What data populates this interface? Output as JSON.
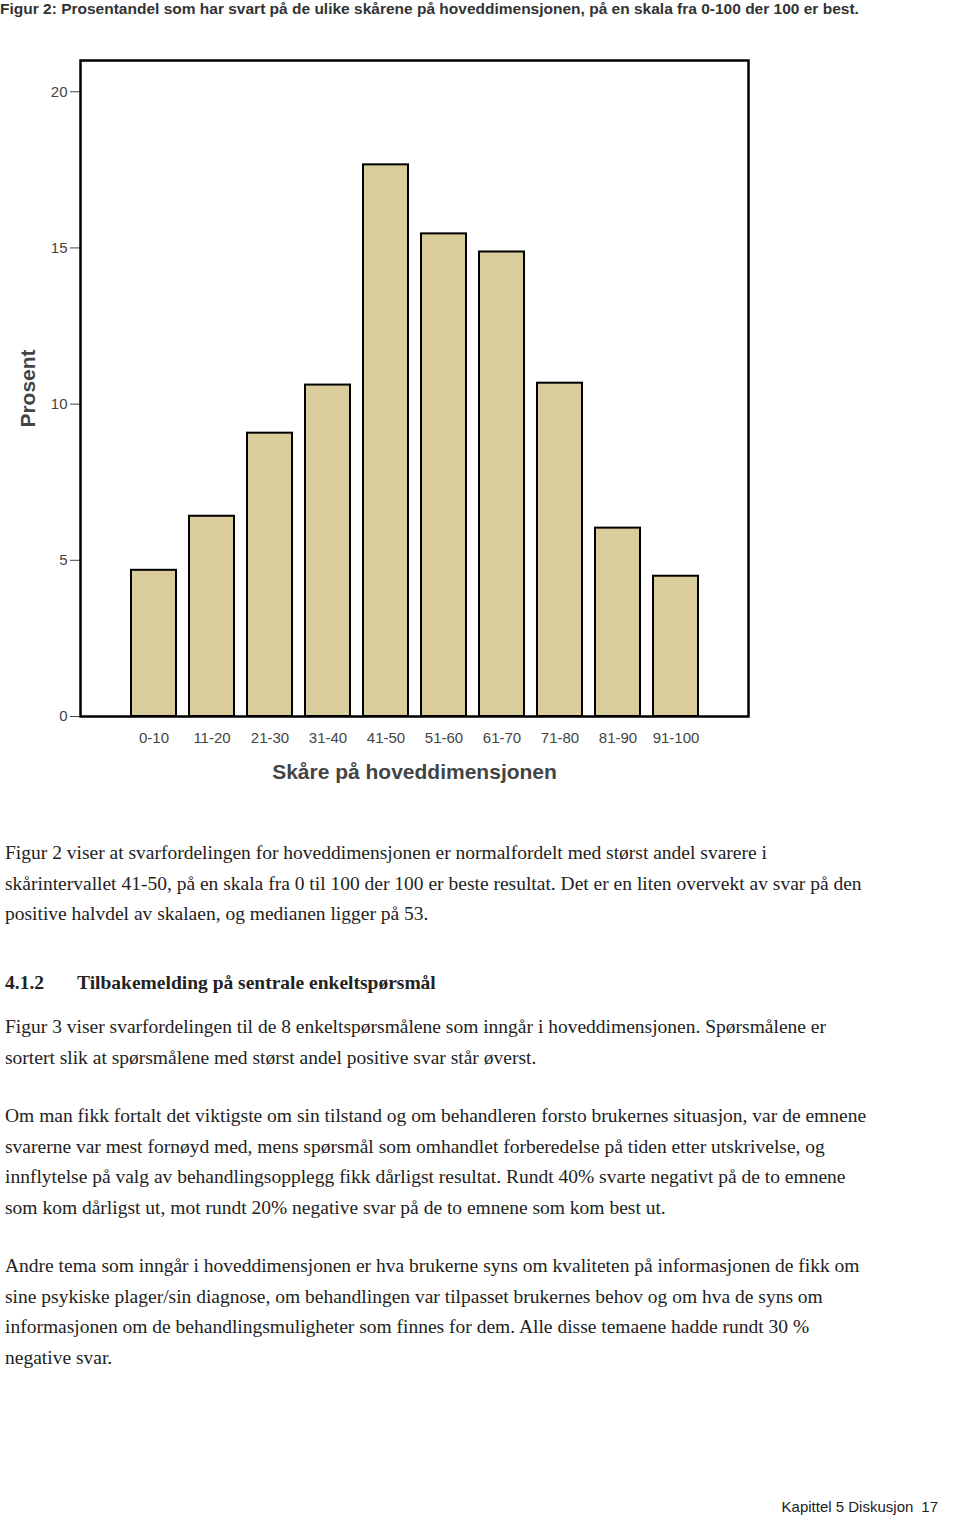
{
  "caption": "Figur 2: Prosentandel som har svart på de ulike skårene på hoveddimensjonen, på en skala fra 0-100 der 100 er best.",
  "chart_data": {
    "type": "bar",
    "categories": [
      "0-10",
      "11-20",
      "21-30",
      "31-40",
      "41-50",
      "51-60",
      "61-70",
      "71-80",
      "81-90",
      "91-100"
    ],
    "values": [
      4.68,
      6.41,
      9.07,
      10.61,
      17.66,
      15.45,
      14.87,
      10.67,
      6.03,
      4.49
    ],
    "color": "#d9cd9b",
    "xlabel": "Skåre på hoveddimensjonen",
    "ylabel": "Prosent",
    "ylim": [
      0,
      21
    ],
    "yticks": [
      0,
      5,
      10,
      15,
      20
    ],
    "grid": false
  },
  "body": [
    {
      "type": "paragraph",
      "text": "Figur 2 viser at svarfordelingen for hoveddimensjonen er normalfordelt med størst andel svarere i skårintervallet 41-50, på en skala fra 0 til 100 der 100 er beste resultat. Det er en liten overvekt av svar på den positive halvdel av skalaen, og medianen ligger på 53."
    },
    {
      "type": "heading",
      "number": "4.1.2",
      "text": "Tilbakemelding på sentrale enkeltspørsmål"
    },
    {
      "type": "paragraph",
      "text": "Figur 3 viser svarfordelingen til de 8 enkeltspørsmålene som inngår i hoveddimensjonen. Spørsmålene er sortert slik at spørsmålene med størst andel positive svar står øverst."
    },
    {
      "type": "paragraph",
      "text": "Om man fikk fortalt det viktigste om sin tilstand og om behandleren forsto brukernes situasjon, var de emnene svarerne var mest fornøyd med, mens spørsmål som omhandlet forberedelse på tiden etter utskrivelse, og innflytelse på valg av behandlingsopplegg fikk dårligst resultat. Rundt 40% svarte negativt på de to emnene som kom dårligst ut, mot rundt 20% negative svar på de to emnene som kom best ut."
    },
    {
      "type": "paragraph",
      "text": "Andre tema som inngår i hoveddimensjonen er hva brukerne syns om kvaliteten på informasjonen de fikk om sine psykiske plager/sin diagnose, om behandlingen var tilpasset brukernes behov og om hva de syns om informasjonen om de behandlingsmuligheter som finnes for dem. Alle disse temaene hadde rundt 30 % negative svar."
    }
  ],
  "footer": {
    "chapter": "Kapittel 5",
    "section": "Diskusjon",
    "page": 17
  }
}
